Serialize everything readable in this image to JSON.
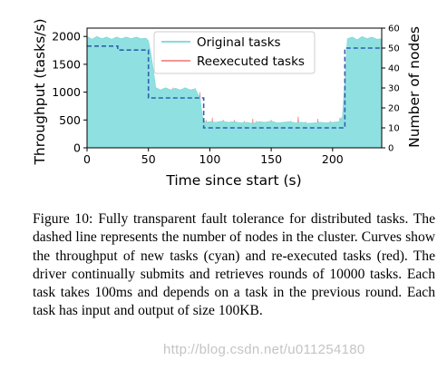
{
  "chart_data": {
    "type": "area",
    "xlabel": "Time since start (s)",
    "ylabel_left": "Throughput (tasks/s)",
    "ylabel_right": "Number of nodes",
    "xlim": [
      0,
      240
    ],
    "ylim_left": [
      0,
      2150
    ],
    "ylim_right": [
      0,
      60
    ],
    "xticks": [
      0,
      50,
      100,
      150,
      200
    ],
    "yticks_left": [
      0,
      500,
      1000,
      1500,
      2000
    ],
    "yticks_right": [
      0,
      10,
      20,
      30,
      40,
      50,
      60
    ],
    "legend": {
      "position": "top-center",
      "entries": [
        "Original tasks",
        "Reexecuted tasks"
      ]
    },
    "series": [
      {
        "name": "Original tasks",
        "color": "#8fe0e0",
        "points": [
          [
            0,
            2000
          ],
          [
            4,
            1950
          ],
          [
            8,
            2000
          ],
          [
            12,
            1960
          ],
          [
            16,
            1990
          ],
          [
            20,
            1950
          ],
          [
            24,
            1990
          ],
          [
            28,
            1960
          ],
          [
            32,
            1990
          ],
          [
            36,
            1960
          ],
          [
            40,
            1990
          ],
          [
            44,
            1960
          ],
          [
            48,
            1970
          ],
          [
            50,
            1920
          ],
          [
            52,
            1700
          ],
          [
            54,
            1400
          ],
          [
            56,
            1080
          ],
          [
            60,
            1040
          ],
          [
            64,
            1080
          ],
          [
            68,
            1040
          ],
          [
            72,
            1070
          ],
          [
            76,
            1040
          ],
          [
            80,
            1080
          ],
          [
            84,
            1040
          ],
          [
            88,
            1060
          ],
          [
            92,
            900
          ],
          [
            94,
            560
          ],
          [
            96,
            460
          ],
          [
            100,
            470
          ],
          [
            105,
            460
          ],
          [
            110,
            480
          ],
          [
            115,
            460
          ],
          [
            120,
            470
          ],
          [
            125,
            450
          ],
          [
            130,
            460
          ],
          [
            135,
            440
          ],
          [
            140,
            470
          ],
          [
            145,
            460
          ],
          [
            150,
            480
          ],
          [
            155,
            450
          ],
          [
            160,
            460
          ],
          [
            165,
            470
          ],
          [
            170,
            450
          ],
          [
            175,
            460
          ],
          [
            180,
            440
          ],
          [
            185,
            450
          ],
          [
            190,
            460
          ],
          [
            195,
            450
          ],
          [
            200,
            460
          ],
          [
            205,
            470
          ],
          [
            208,
            560
          ],
          [
            210,
            1200
          ],
          [
            212,
            1960
          ],
          [
            216,
            1990
          ],
          [
            220,
            1940
          ],
          [
            224,
            2000
          ],
          [
            228,
            1960
          ],
          [
            232,
            1990
          ],
          [
            236,
            1950
          ],
          [
            240,
            1960
          ]
        ]
      },
      {
        "name": "Reexecuted tasks",
        "color": "#f08080",
        "spikes": [
          [
            55,
            1080
          ],
          [
            59,
            1000
          ],
          [
            62,
            1060
          ],
          [
            66,
            980
          ],
          [
            70,
            1080
          ],
          [
            74,
            1000
          ],
          [
            80,
            920
          ],
          [
            88,
            1070
          ],
          [
            92,
            1000
          ],
          [
            97,
            500
          ],
          [
            102,
            540
          ],
          [
            107,
            460
          ],
          [
            111,
            500
          ],
          [
            113,
            420
          ],
          [
            116,
            180
          ],
          [
            120,
            500
          ],
          [
            128,
            480
          ],
          [
            135,
            520
          ],
          [
            138,
            480
          ],
          [
            150,
            500
          ],
          [
            166,
            480
          ],
          [
            172,
            560
          ],
          [
            178,
            470
          ],
          [
            188,
            520
          ],
          [
            198,
            480
          ],
          [
            206,
            540
          ],
          [
            208,
            500
          ]
        ]
      },
      {
        "name": "Number of nodes",
        "color": "#2f5fae",
        "axis": "right",
        "points": [
          [
            0,
            51
          ],
          [
            25,
            51
          ],
          [
            25,
            49
          ],
          [
            50,
            49
          ],
          [
            50,
            25
          ],
          [
            95,
            25
          ],
          [
            95,
            10
          ],
          [
            210,
            10
          ],
          [
            210,
            50
          ],
          [
            240,
            50
          ]
        ]
      }
    ]
  },
  "caption": {
    "label": "Figure 10:",
    "text": "Fully transparent fault tolerance for distributed tasks. The dashed line represents the number of nodes in the cluster. Curves show the throughput of new tasks (cyan) and re-executed tasks (red). The driver continually submits and retrieves rounds of 10000 tasks. Each task takes 100ms and depends on a task in the previous round. Each task has input and output of size 100KB."
  },
  "watermark": "http://blog.csdn.net/u011254180"
}
